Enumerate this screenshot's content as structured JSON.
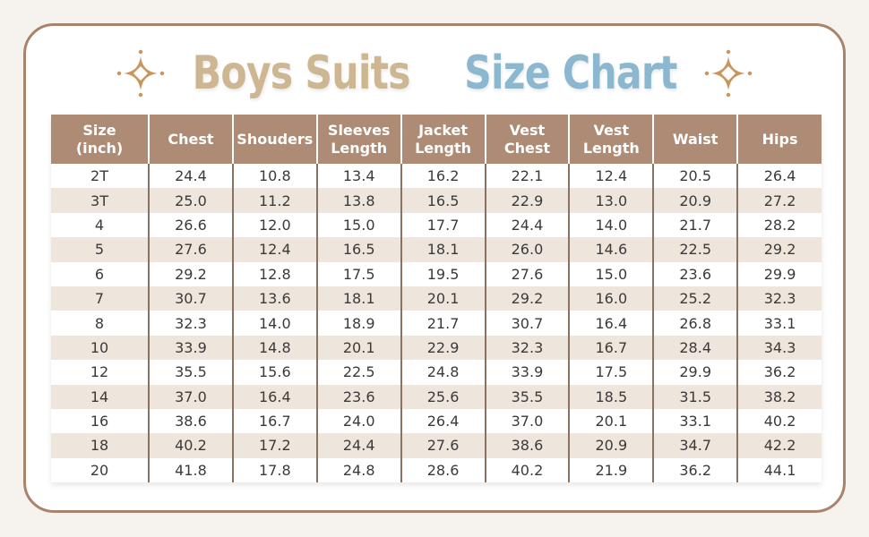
{
  "title": {
    "part1": "Boys Suits",
    "part2": "Size Chart",
    "part1_color": "#cdb792",
    "part2_color": "#8cb8cf",
    "decoration_icon": "sparkle-icon"
  },
  "colors": {
    "header_bg": "#ae8b74",
    "row_alt_bg": "#eee6dc",
    "card_border": "#a9836b",
    "sparkle": "#c9955a"
  },
  "table": {
    "headers": [
      [
        "Size",
        "(inch)"
      ],
      [
        "Chest"
      ],
      [
        "Shouders"
      ],
      [
        "Sleeves",
        "Length"
      ],
      [
        "Jacket",
        "Length"
      ],
      [
        "Vest",
        "Chest"
      ],
      [
        "Vest",
        "Length"
      ],
      [
        "Waist"
      ],
      [
        "Hips"
      ]
    ],
    "rows": [
      [
        "2T",
        "24.4",
        "10.8",
        "13.4",
        "16.2",
        "22.1",
        "12.4",
        "20.5",
        "26.4"
      ],
      [
        "3T",
        "25.0",
        "11.2",
        "13.8",
        "16.5",
        "22.9",
        "13.0",
        "20.9",
        "27.2"
      ],
      [
        "4",
        "26.6",
        "12.0",
        "15.0",
        "17.7",
        "24.4",
        "14.0",
        "21.7",
        "28.2"
      ],
      [
        "5",
        "27.6",
        "12.4",
        "16.5",
        "18.1",
        "26.0",
        "14.6",
        "22.5",
        "29.2"
      ],
      [
        "6",
        "29.2",
        "12.8",
        "17.5",
        "19.5",
        "27.6",
        "15.0",
        "23.6",
        "29.9"
      ],
      [
        "7",
        "30.7",
        "13.6",
        "18.1",
        "20.1",
        "29.2",
        "16.0",
        "25.2",
        "32.3"
      ],
      [
        "8",
        "32.3",
        "14.0",
        "18.9",
        "21.7",
        "30.7",
        "16.4",
        "26.8",
        "33.1"
      ],
      [
        "10",
        "33.9",
        "14.8",
        "20.1",
        "22.9",
        "32.3",
        "16.7",
        "28.4",
        "34.3"
      ],
      [
        "12",
        "35.5",
        "15.6",
        "22.5",
        "24.8",
        "33.9",
        "17.5",
        "29.9",
        "36.2"
      ],
      [
        "14",
        "37.0",
        "16.4",
        "23.6",
        "25.6",
        "35.5",
        "18.5",
        "31.5",
        "38.2"
      ],
      [
        "16",
        "38.6",
        "16.7",
        "24.0",
        "26.4",
        "37.0",
        "20.1",
        "33.1",
        "40.2"
      ],
      [
        "18",
        "40.2",
        "17.2",
        "24.4",
        "27.6",
        "38.6",
        "20.9",
        "34.7",
        "42.2"
      ],
      [
        "20",
        "41.8",
        "17.8",
        "24.8",
        "28.6",
        "40.2",
        "21.9",
        "36.2",
        "44.1"
      ]
    ]
  },
  "chart_data": {
    "type": "table",
    "title": "Boys Suits Size Chart",
    "unit": "inch",
    "columns": [
      "Size (inch)",
      "Chest",
      "Shouders",
      "Sleeves Length",
      "Jacket Length",
      "Vest Chest",
      "Vest Length",
      "Waist",
      "Hips"
    ],
    "categories": [
      "2T",
      "3T",
      "4",
      "5",
      "6",
      "7",
      "8",
      "10",
      "12",
      "14",
      "16",
      "18",
      "20"
    ],
    "series": [
      {
        "name": "Chest",
        "values": [
          24.4,
          25.0,
          26.6,
          27.6,
          29.2,
          30.7,
          32.3,
          33.9,
          35.5,
          37.0,
          38.6,
          40.2,
          41.8
        ]
      },
      {
        "name": "Shouders",
        "values": [
          10.8,
          11.2,
          12.0,
          12.4,
          12.8,
          13.6,
          14.0,
          14.8,
          15.6,
          16.4,
          16.7,
          17.2,
          17.8
        ]
      },
      {
        "name": "Sleeves Length",
        "values": [
          13.4,
          13.8,
          15.0,
          16.5,
          17.5,
          18.1,
          18.9,
          20.1,
          22.5,
          23.6,
          24.0,
          24.4,
          24.8
        ]
      },
      {
        "name": "Jacket Length",
        "values": [
          16.2,
          16.5,
          17.7,
          18.1,
          19.5,
          20.1,
          21.7,
          22.9,
          24.8,
          25.6,
          26.4,
          27.6,
          28.6
        ]
      },
      {
        "name": "Vest Chest",
        "values": [
          22.1,
          22.9,
          24.4,
          26.0,
          27.6,
          29.2,
          30.7,
          32.3,
          33.9,
          35.5,
          37.0,
          38.6,
          40.2
        ]
      },
      {
        "name": "Vest Length",
        "values": [
          12.4,
          13.0,
          14.0,
          14.6,
          15.0,
          16.0,
          16.4,
          16.7,
          17.5,
          18.5,
          20.1,
          20.9,
          21.9
        ]
      },
      {
        "name": "Waist",
        "values": [
          20.5,
          20.9,
          21.7,
          22.5,
          23.6,
          25.2,
          26.8,
          28.4,
          29.9,
          31.5,
          33.1,
          34.7,
          36.2
        ]
      },
      {
        "name": "Hips",
        "values": [
          26.4,
          27.2,
          28.2,
          29.2,
          29.9,
          32.3,
          33.1,
          34.3,
          36.2,
          38.2,
          40.2,
          42.2,
          44.1
        ]
      }
    ]
  }
}
